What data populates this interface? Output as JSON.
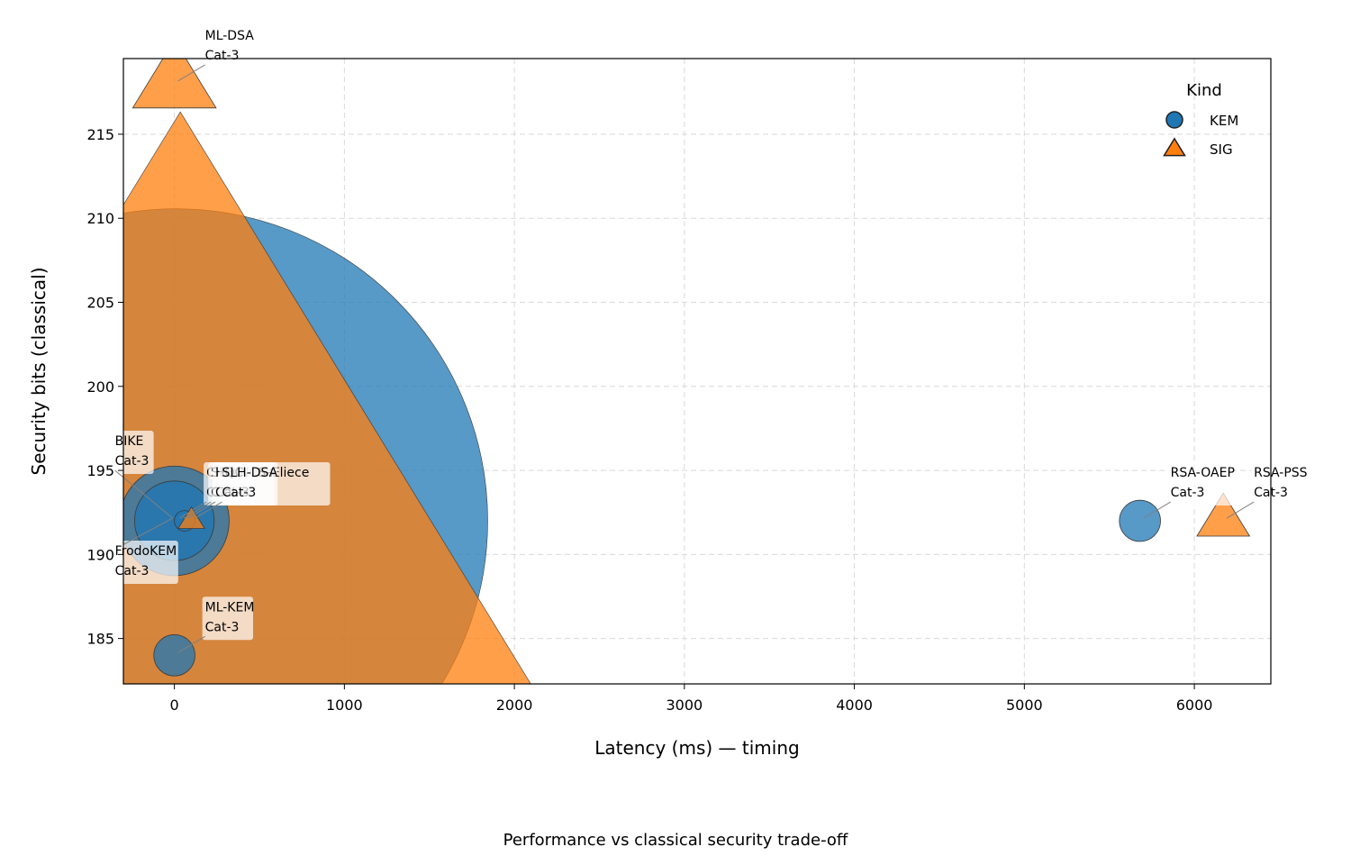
{
  "chart_data": {
    "type": "scatter",
    "caption": "Performance vs classical security trade-off",
    "xlabel": "Latency (ms) — timing",
    "ylabel": "Security bits (classical)",
    "xlim": [
      -300,
      6450
    ],
    "ylim": [
      182.3,
      219.5
    ],
    "xticks": [
      0,
      1000,
      2000,
      3000,
      4000,
      5000,
      6000
    ],
    "yticks": [
      185,
      190,
      195,
      200,
      205,
      210,
      215
    ],
    "grid": true,
    "legend": {
      "title": "Kind",
      "position": "top-right",
      "entries": [
        {
          "label": "KEM",
          "marker": "circle",
          "color": "#1f77b4"
        },
        {
          "label": "SIG",
          "marker": "triangle",
          "color": "#ff7f0e"
        }
      ]
    },
    "points": [
      {
        "name": "Classic McEliece",
        "label_line1": "Classic McEliece",
        "label_line2": "Cat-3",
        "kind": "KEM",
        "x": 8,
        "y": 192,
        "size": 2760
      },
      {
        "name": "SPHINCS+",
        "label_line1": "SPHINCS+",
        "label_line2": "Cat-3",
        "kind": "SIG",
        "x": 35,
        "y": 192,
        "size": 2600
      },
      {
        "name": "ML-DSA",
        "label_line1": "ML-DSA",
        "label_line2": "Cat-3",
        "kind": "SIG",
        "x": 0,
        "y": 218,
        "size": 30
      },
      {
        "name": "BIKE",
        "label_line1": "BIKE",
        "label_line2": "Cat-3",
        "kind": "KEM",
        "x": 0,
        "y": 192,
        "size": 85
      },
      {
        "name": "FrodoKEM",
        "label_line1": "FrodoKEM",
        "label_line2": "Cat-3",
        "kind": "KEM",
        "x": 0,
        "y": 192,
        "size": 45
      },
      {
        "name": "ML-KEM",
        "label_line1": "ML-KEM",
        "label_line2": "Cat-3",
        "kind": "KEM",
        "x": 0,
        "y": 184,
        "size": 12
      },
      {
        "name": "HQC",
        "label_line1": "HQC",
        "label_line2": "Cat-3",
        "kind": "KEM",
        "x": 60,
        "y": 192,
        "size": 3
      },
      {
        "name": "SLH-DSA",
        "label_line1": "SLH-DSA",
        "label_line2": "Cat-3",
        "kind": "SIG",
        "x": 100,
        "y": 192,
        "size": 3
      },
      {
        "name": "RSA-OAEP",
        "label_line1": "RSA-OAEP",
        "label_line2": "Cat-3",
        "kind": "KEM",
        "x": 5680,
        "y": 192,
        "size": 12
      },
      {
        "name": "RSA-PSS",
        "label_line1": "RSA-PSS",
        "label_line2": "Cat-3",
        "kind": "SIG",
        "x": 6170,
        "y": 192,
        "size": 12
      }
    ]
  }
}
